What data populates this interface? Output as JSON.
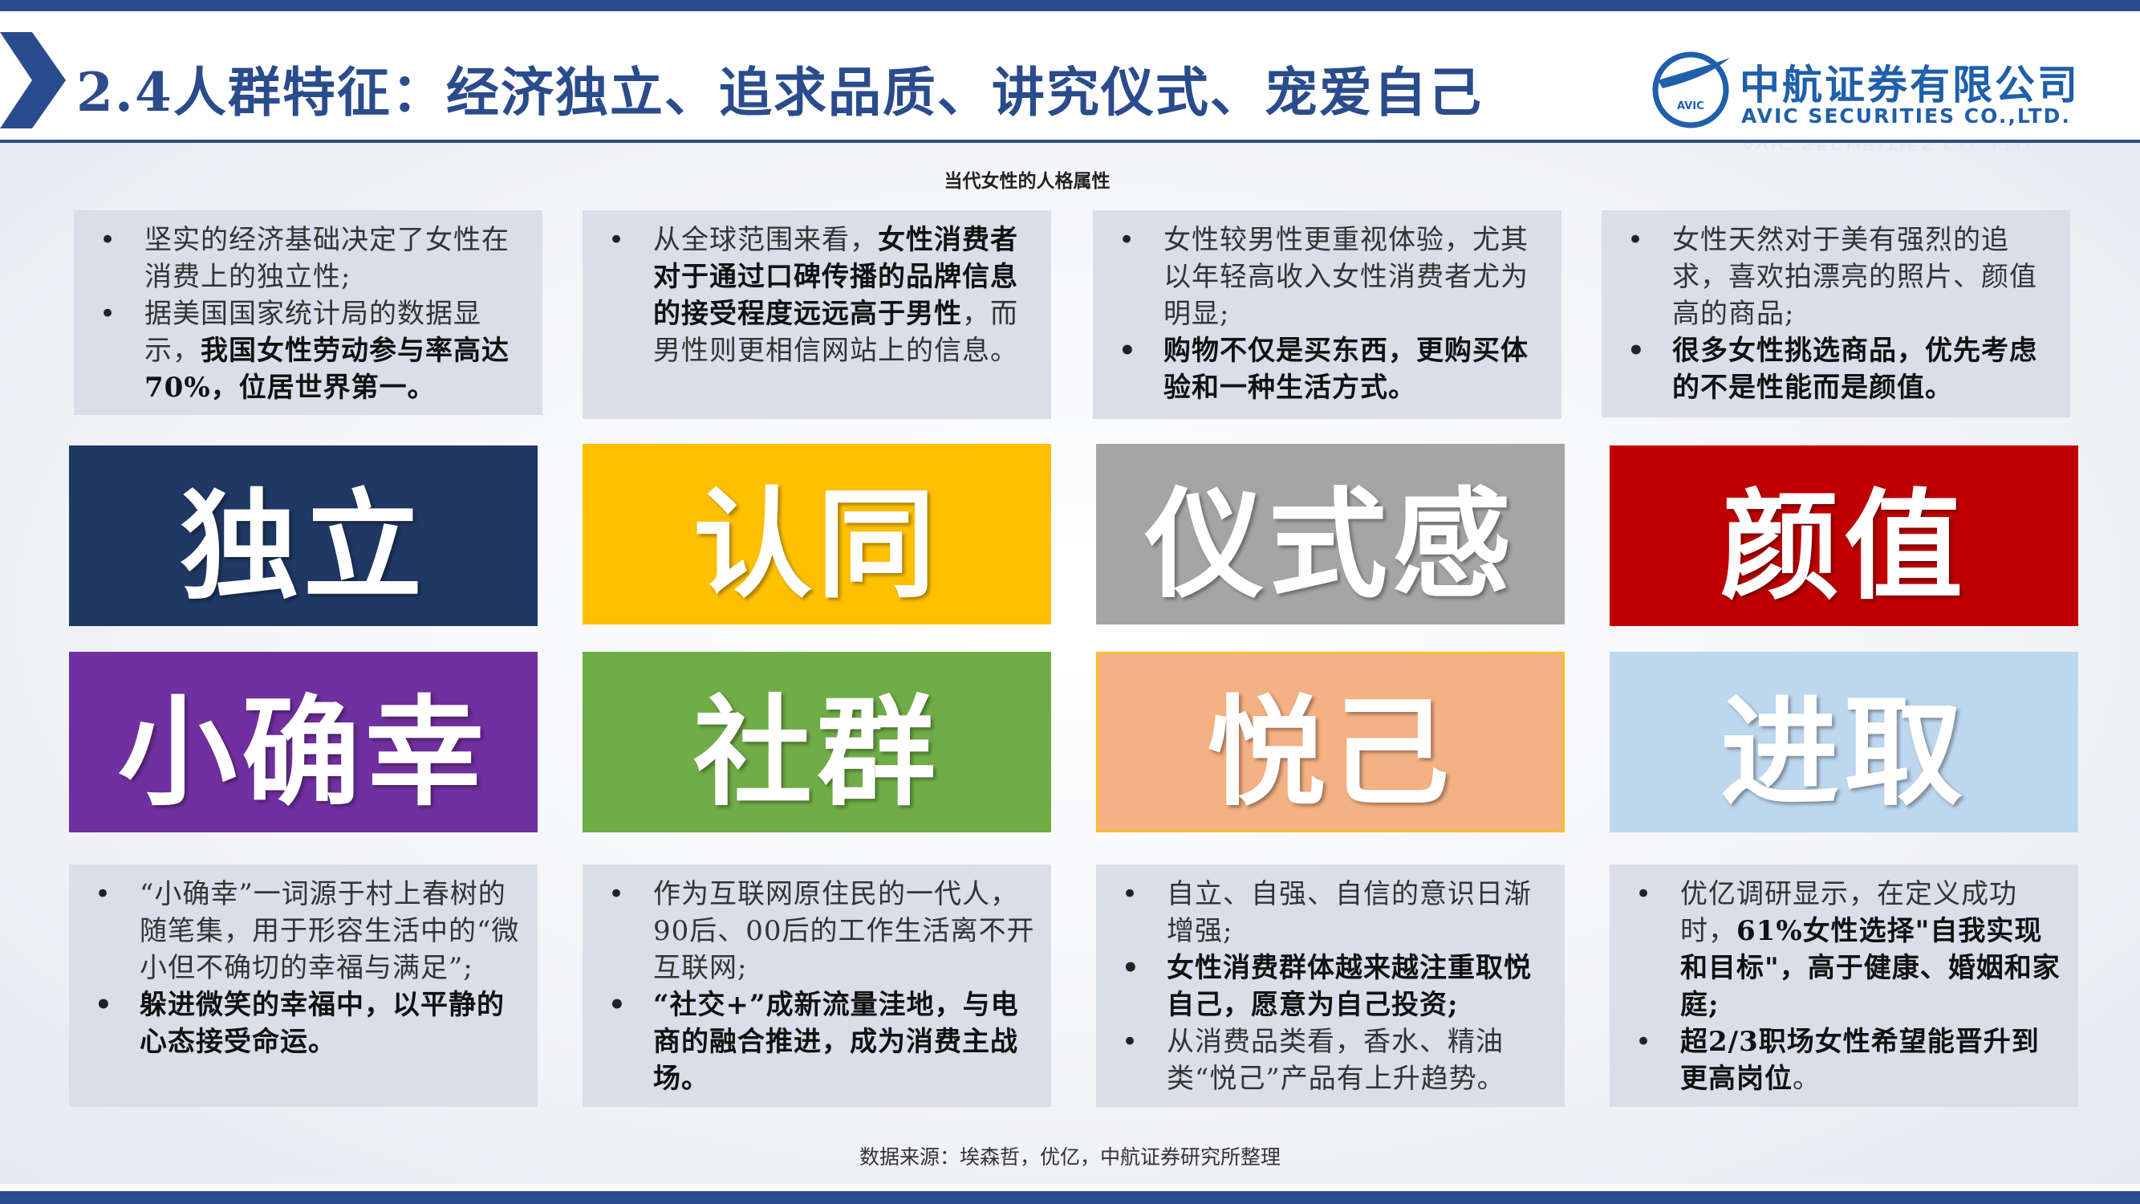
{
  "header": {
    "title": "2.4人群特征：经济独立、追求品质、讲究仪式、宠爱自己",
    "brand_color": "#2a4b8c"
  },
  "logo": {
    "name_cn": "中航证券有限公司",
    "name_en": "AVIC SECURITIES CO.,LTD.",
    "badge": "AVIC",
    "ghost": "AVIC SECURITIES CO.,LTD.",
    "color": "#1f5fab"
  },
  "chart_title": "当代女性的人格属性",
  "top_notes": [
    {
      "items": [
        {
          "text": "坚实的经济基础决定了女性在消费上的独立性;"
        },
        {
          "plain": "据美国国家统计局的数据显示，",
          "bold": "我国女性劳动参与率高达70%，位居世界第一。"
        }
      ]
    },
    {
      "items": [
        {
          "plain": "从全球范围来看，",
          "bold": "女性消费者对于通过口碑传播的品牌信息的接受程度远远高于男性",
          "tail": "，而男性则更相信网站上的信息。"
        }
      ]
    },
    {
      "items": [
        {
          "text": "女性较男性更重视体验，尤其以年轻高收入女性消费者尤为明显;"
        },
        {
          "bold_text": "购物不仅是买东西，更购买体验和一种生活方式。"
        }
      ]
    },
    {
      "items": [
        {
          "text": "女性天然对于美有强烈的追求，喜欢拍漂亮的照片、颜值高的商品;"
        },
        {
          "bold_text": "很多女性挑选商品，优先考虑的不是性能而是颜值。"
        }
      ]
    }
  ],
  "cards": [
    {
      "label": "独立",
      "color": "#1f3864"
    },
    {
      "label": "认同",
      "color": "#ffc000"
    },
    {
      "label": "仪式感",
      "color": "#a5a5a5"
    },
    {
      "label": "颜值",
      "color": "#c00000"
    },
    {
      "label": "小确幸",
      "color": "#7030a0"
    },
    {
      "label": "社群",
      "color": "#70ad47"
    },
    {
      "label": "悦己",
      "color": "#f4b183"
    },
    {
      "label": "进取",
      "color": "#bdd7ee"
    }
  ],
  "bottom_notes": [
    {
      "items": [
        {
          "text": "“小确幸”一词源于村上春树的随笔集，用于形容生活中的“微小但不确切的幸福与满足”;"
        },
        {
          "bold_text": "躲进微笑的幸福中，以平静的心态接受命运。"
        }
      ]
    },
    {
      "items": [
        {
          "text": "作为互联网原住民的一代人，90后、00后的工作生活离不开互联网;"
        },
        {
          "bold_text": "“社交+”成新流量洼地，与电商的融合推进，成为消费主战场。"
        }
      ]
    },
    {
      "items": [
        {
          "text": "自立、自强、自信的意识日渐增强;"
        },
        {
          "bold_text": "女性消费群体越来越注重取悦自己，愿意为自己投资;"
        },
        {
          "text": "从消费品类看，香水、精油类“悦己”产品有上升趋势。"
        }
      ]
    },
    {
      "items": [
        {
          "plain": "优亿调研显示，在定义成功时，",
          "bold": "61%女性选择\"自我实现和目标\"，高于健康、婚姻和家庭;"
        },
        {
          "bold": "超2/3职场女性希望能晋升到更高岗位",
          "tail": "。"
        }
      ]
    }
  ],
  "source": "数据来源：埃森哲，优亿，中航证券研究所整理"
}
